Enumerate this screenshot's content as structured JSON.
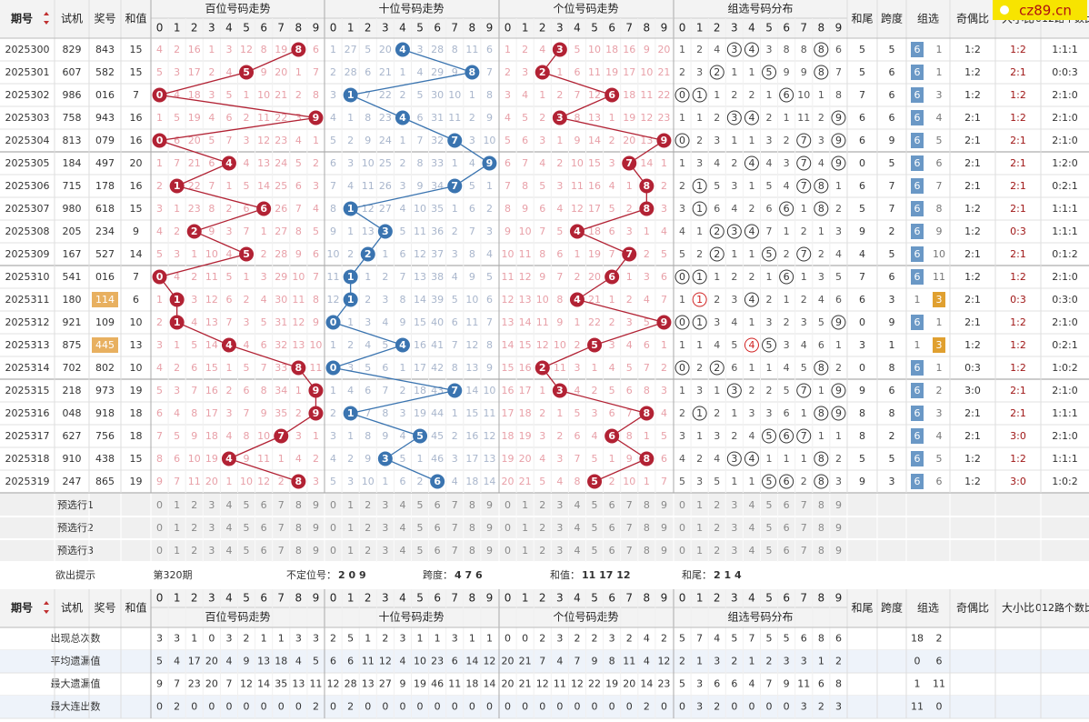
{
  "watermark": "cz89.cn",
  "header": {
    "issue": "期号",
    "trial": "试机",
    "prize": "奖号",
    "sum": "和值",
    "sections": [
      "百位号码走势",
      "十位号码走势",
      "个位号码走势",
      "组选号码分布"
    ],
    "sum_tail": "和尾",
    "span": "跨度",
    "group": "组选",
    "odd_even": "奇偶比",
    "big_small": "大小比",
    "route": "012路个数比"
  },
  "digits": [
    0,
    1,
    2,
    3,
    4,
    5,
    6,
    7,
    8,
    9
  ],
  "rows": [
    {
      "issue": "2025300",
      "trial": "829",
      "prize": "843",
      "sum": 15,
      "hundreds": [
        4,
        2,
        16,
        1,
        3,
        12,
        8,
        19,
        0,
        6
      ],
      "tens": [
        1,
        27,
        5,
        20,
        0,
        3,
        28,
        8,
        11,
        6
      ],
      "units": [
        1,
        2,
        4,
        0,
        5,
        10,
        18,
        16,
        9,
        20
      ],
      "group_dist": [
        1,
        2,
        4,
        0,
        0,
        3,
        8,
        8,
        0,
        6
      ],
      "sum_tail": 5,
      "span": 5,
      "group_type": 6,
      "group_miss": 1,
      "odd_even": "1:2",
      "big_small": "1:2",
      "route": "1:1:1"
    },
    {
      "issue": "2025301",
      "trial": "607",
      "prize": "582",
      "sum": 15,
      "hundreds": [
        5,
        3,
        17,
        2,
        4,
        0,
        9,
        20,
        1,
        7
      ],
      "tens": [
        2,
        28,
        6,
        21,
        1,
        4,
        29,
        9,
        0,
        7
      ],
      "units": [
        2,
        3,
        0,
        1,
        6,
        11,
        19,
        17,
        10,
        21
      ],
      "group_dist": [
        2,
        3,
        0,
        1,
        1,
        0,
        9,
        9,
        0,
        7
      ],
      "sum_tail": 5,
      "span": 6,
      "group_type": 6,
      "group_miss": 1,
      "odd_even": "1:2",
      "big_small": "2:1",
      "route": "0:0:3"
    },
    {
      "issue": "2025302",
      "trial": "986",
      "prize": "016",
      "sum": 7,
      "hundreds": [
        0,
        4,
        18,
        3,
        5,
        1,
        10,
        21,
        2,
        8
      ],
      "tens": [
        3,
        0,
        7,
        22,
        2,
        5,
        30,
        10,
        1,
        8
      ],
      "units": [
        3,
        4,
        1,
        2,
        7,
        12,
        0,
        18,
        11,
        22
      ],
      "group_dist": [
        0,
        0,
        1,
        2,
        2,
        1,
        0,
        10,
        1,
        8
      ],
      "sum_tail": 7,
      "span": 6,
      "group_type": 6,
      "group_miss": 3,
      "odd_even": "1:2",
      "big_small": "1:2",
      "route": "2:1:0"
    },
    {
      "issue": "2025303",
      "trial": "758",
      "prize": "943",
      "sum": 16,
      "hundreds": [
        1,
        5,
        19,
        4,
        6,
        2,
        11,
        22,
        3,
        0
      ],
      "tens": [
        4,
        1,
        8,
        23,
        0,
        6,
        31,
        11,
        2,
        9
      ],
      "units": [
        4,
        5,
        2,
        0,
        8,
        13,
        1,
        19,
        12,
        23
      ],
      "group_dist": [
        1,
        1,
        2,
        0,
        0,
        2,
        1,
        11,
        2,
        0
      ],
      "sum_tail": 6,
      "span": 6,
      "group_type": 6,
      "group_miss": 4,
      "odd_even": "2:1",
      "big_small": "1:2",
      "route": "2:1:0"
    },
    {
      "issue": "2025304",
      "trial": "813",
      "prize": "079",
      "sum": 16,
      "hundreds": [
        0,
        6,
        20,
        5,
        7,
        3,
        12,
        23,
        4,
        1
      ],
      "tens": [
        5,
        2,
        9,
        24,
        1,
        7,
        32,
        0,
        3,
        10
      ],
      "units": [
        5,
        6,
        3,
        1,
        9,
        14,
        2,
        20,
        13,
        0
      ],
      "group_dist": [
        0,
        2,
        3,
        1,
        1,
        3,
        2,
        0,
        3,
        0
      ],
      "sum_tail": 6,
      "span": 9,
      "group_type": 6,
      "group_miss": 5,
      "odd_even": "2:1",
      "big_small": "2:1",
      "route": "2:1:0"
    },
    {
      "issue": "2025305",
      "trial": "184",
      "prize": "497",
      "sum": 20,
      "hundreds": [
        1,
        7,
        21,
        6,
        0,
        4,
        13,
        24,
        5,
        2
      ],
      "tens": [
        6,
        3,
        10,
        25,
        2,
        8,
        33,
        1,
        4,
        0
      ],
      "units": [
        6,
        7,
        4,
        2,
        10,
        15,
        3,
        0,
        14,
        1
      ],
      "group_dist": [
        1,
        3,
        4,
        2,
        0,
        4,
        3,
        0,
        4,
        0
      ],
      "sum_tail": 0,
      "span": 5,
      "group_type": 6,
      "group_miss": 6,
      "odd_even": "2:1",
      "big_small": "2:1",
      "route": "1:2:0"
    },
    {
      "issue": "2025306",
      "trial": "715",
      "prize": "178",
      "sum": 16,
      "hundreds": [
        2,
        0,
        22,
        7,
        1,
        5,
        14,
        25,
        6,
        3
      ],
      "tens": [
        7,
        4,
        11,
        26,
        3,
        9,
        34,
        0,
        5,
        1
      ],
      "units": [
        7,
        8,
        5,
        3,
        11,
        16,
        4,
        1,
        0,
        2
      ],
      "group_dist": [
        2,
        0,
        5,
        3,
        1,
        5,
        4,
        0,
        0,
        1
      ],
      "sum_tail": 6,
      "span": 7,
      "group_type": 6,
      "group_miss": 7,
      "odd_even": "2:1",
      "big_small": "2:1",
      "route": "0:2:1"
    },
    {
      "issue": "2025307",
      "trial": "980",
      "prize": "618",
      "sum": 15,
      "hundreds": [
        3,
        1,
        23,
        8,
        2,
        6,
        0,
        26,
        7,
        4
      ],
      "tens": [
        8,
        0,
        12,
        27,
        4,
        10,
        35,
        1,
        6,
        2
      ],
      "units": [
        8,
        9,
        6,
        4,
        12,
        17,
        5,
        2,
        0,
        3
      ],
      "group_dist": [
        3,
        0,
        6,
        4,
        2,
        6,
        0,
        1,
        0,
        2
      ],
      "sum_tail": 5,
      "span": 7,
      "group_type": 6,
      "group_miss": 8,
      "odd_even": "1:2",
      "big_small": "2:1",
      "route": "1:1:1"
    },
    {
      "issue": "2025308",
      "trial": "205",
      "prize": "234",
      "sum": 9,
      "hundreds": [
        4,
        2,
        0,
        9,
        3,
        7,
        1,
        27,
        8,
        5
      ],
      "tens": [
        9,
        1,
        13,
        0,
        5,
        11,
        36,
        2,
        7,
        3
      ],
      "units": [
        9,
        10,
        7,
        5,
        0,
        18,
        6,
        3,
        1,
        4
      ],
      "group_dist": [
        4,
        1,
        0,
        0,
        0,
        7,
        1,
        2,
        1,
        3
      ],
      "sum_tail": 9,
      "span": 2,
      "group_type": 6,
      "group_miss": 9,
      "odd_even": "1:2",
      "big_small": "0:3",
      "route": "1:1:1"
    },
    {
      "issue": "2025309",
      "trial": "167",
      "prize": "527",
      "sum": 14,
      "hundreds": [
        5,
        3,
        1,
        10,
        4,
        0,
        2,
        28,
        9,
        6
      ],
      "tens": [
        10,
        2,
        0,
        1,
        6,
        12,
        37,
        3,
        8,
        4
      ],
      "units": [
        10,
        11,
        8,
        6,
        1,
        19,
        7,
        0,
        2,
        5
      ],
      "group_dist": [
        5,
        2,
        0,
        1,
        1,
        0,
        2,
        0,
        2,
        4
      ],
      "sum_tail": 4,
      "span": 5,
      "group_type": 6,
      "group_miss": 10,
      "odd_even": "2:1",
      "big_small": "2:1",
      "route": "0:1:2"
    },
    {
      "issue": "2025310",
      "trial": "541",
      "prize": "016",
      "sum": 7,
      "hundreds": [
        0,
        4,
        2,
        11,
        5,
        1,
        3,
        29,
        10,
        7
      ],
      "tens": [
        11,
        0,
        1,
        2,
        7,
        13,
        38,
        4,
        9,
        5
      ],
      "units": [
        11,
        12,
        9,
        7,
        2,
        20,
        0,
        1,
        3,
        6
      ],
      "group_dist": [
        0,
        0,
        1,
        2,
        2,
        1,
        0,
        1,
        3,
        5
      ],
      "sum_tail": 7,
      "span": 6,
      "group_type": 6,
      "group_miss": 11,
      "odd_even": "1:2",
      "big_small": "1:2",
      "route": "2:1:0"
    },
    {
      "issue": "2025311",
      "trial": "180",
      "prize": "114",
      "sum": 6,
      "hundreds": [
        1,
        0,
        3,
        12,
        6,
        2,
        4,
        30,
        11,
        8
      ],
      "tens": [
        12,
        0,
        2,
        3,
        8,
        14,
        39,
        5,
        10,
        6
      ],
      "units": [
        12,
        13,
        10,
        8,
        0,
        21,
        1,
        2,
        4,
        7
      ],
      "group_dist": [
        1,
        0,
        2,
        3,
        0,
        2,
        1,
        2,
        4,
        6
      ],
      "sum_tail": 6,
      "span": 3,
      "group_type": 3,
      "group_miss": 1,
      "odd_even": "2:1",
      "big_small": "0:3",
      "route": "0:3:0"
    },
    {
      "issue": "2025312",
      "trial": "921",
      "prize": "109",
      "sum": 10,
      "hundreds": [
        2,
        0,
        4,
        13,
        7,
        3,
        5,
        31,
        12,
        9
      ],
      "tens": [
        0,
        1,
        3,
        4,
        9,
        15,
        40,
        6,
        11,
        7
      ],
      "units": [
        13,
        14,
        11,
        9,
        1,
        22,
        2,
        3,
        5,
        0
      ],
      "group_dist": [
        0,
        0,
        3,
        4,
        1,
        3,
        2,
        3,
        5,
        0
      ],
      "sum_tail": 0,
      "span": 9,
      "group_type": 6,
      "group_miss": 1,
      "odd_even": "2:1",
      "big_small": "1:2",
      "route": "2:1:0"
    },
    {
      "issue": "2025313",
      "trial": "875",
      "prize": "445",
      "sum": 13,
      "hundreds": [
        3,
        1,
        5,
        14,
        0,
        4,
        6,
        32,
        13,
        10
      ],
      "tens": [
        1,
        2,
        4,
        5,
        0,
        16,
        41,
        7,
        12,
        8
      ],
      "units": [
        14,
        15,
        12,
        10,
        2,
        0,
        3,
        4,
        6,
        1
      ],
      "group_dist": [
        1,
        1,
        4,
        5,
        0,
        0,
        3,
        4,
        6,
        1
      ],
      "sum_tail": 3,
      "span": 1,
      "group_type": 3,
      "group_miss": 1,
      "odd_even": "1:2",
      "big_small": "1:2",
      "route": "0:2:1"
    },
    {
      "issue": "2025314",
      "trial": "702",
      "prize": "802",
      "sum": 10,
      "hundreds": [
        4,
        2,
        6,
        15,
        1,
        5,
        7,
        33,
        0,
        11
      ],
      "tens": [
        0,
        3,
        5,
        6,
        1,
        17,
        42,
        8,
        13,
        9
      ],
      "units": [
        15,
        16,
        0,
        11,
        3,
        1,
        4,
        5,
        7,
        2
      ],
      "group_dist": [
        0,
        2,
        0,
        6,
        1,
        1,
        4,
        5,
        0,
        2
      ],
      "sum_tail": 0,
      "span": 8,
      "group_type": 6,
      "group_miss": 1,
      "odd_even": "0:3",
      "big_small": "1:2",
      "route": "1:0:2"
    },
    {
      "issue": "2025315",
      "trial": "218",
      "prize": "973",
      "sum": 19,
      "hundreds": [
        5,
        3,
        7,
        16,
        2,
        6,
        8,
        34,
        1,
        0
      ],
      "tens": [
        1,
        4,
        6,
        7,
        2,
        18,
        43,
        0,
        14,
        10
      ],
      "units": [
        16,
        17,
        1,
        0,
        4,
        2,
        5,
        6,
        8,
        3
      ],
      "group_dist": [
        1,
        3,
        1,
        0,
        2,
        2,
        5,
        0,
        1,
        0
      ],
      "sum_tail": 9,
      "span": 6,
      "group_type": 6,
      "group_miss": 2,
      "odd_even": "3:0",
      "big_small": "2:1",
      "route": "2:1:0"
    },
    {
      "issue": "2025316",
      "trial": "048",
      "prize": "918",
      "sum": 18,
      "hundreds": [
        6,
        4,
        8,
        17,
        3,
        7,
        9,
        35,
        2,
        0
      ],
      "tens": [
        2,
        0,
        7,
        8,
        3,
        19,
        44,
        1,
        15,
        11
      ],
      "units": [
        17,
        18,
        2,
        1,
        5,
        3,
        6,
        7,
        0,
        4
      ],
      "group_dist": [
        2,
        0,
        2,
        1,
        3,
        3,
        6,
        1,
        0,
        0
      ],
      "sum_tail": 8,
      "span": 8,
      "group_type": 6,
      "group_miss": 3,
      "odd_even": "2:1",
      "big_small": "2:1",
      "route": "1:1:1"
    },
    {
      "issue": "2025317",
      "trial": "627",
      "prize": "756",
      "sum": 18,
      "hundreds": [
        7,
        5,
        9,
        18,
        4,
        8,
        10,
        0,
        3,
        1
      ],
      "tens": [
        3,
        1,
        8,
        9,
        4,
        0,
        45,
        2,
        16,
        12
      ],
      "units": [
        18,
        19,
        3,
        2,
        6,
        4,
        0,
        8,
        1,
        5
      ],
      "group_dist": [
        3,
        1,
        3,
        2,
        4,
        0,
        0,
        0,
        1,
        1
      ],
      "sum_tail": 8,
      "span": 2,
      "group_type": 6,
      "group_miss": 4,
      "odd_even": "2:1",
      "big_small": "3:0",
      "route": "2:1:0"
    },
    {
      "issue": "2025318",
      "trial": "910",
      "prize": "438",
      "sum": 15,
      "hundreds": [
        8,
        6,
        10,
        19,
        0,
        9,
        11,
        1,
        4,
        2
      ],
      "tens": [
        4,
        2,
        9,
        0,
        5,
        1,
        46,
        3,
        17,
        13
      ],
      "units": [
        19,
        20,
        4,
        3,
        7,
        5,
        1,
        9,
        0,
        6
      ],
      "group_dist": [
        4,
        2,
        4,
        0,
        0,
        1,
        1,
        1,
        0,
        2
      ],
      "sum_tail": 5,
      "span": 5,
      "group_type": 6,
      "group_miss": 5,
      "odd_even": "1:2",
      "big_small": "1:2",
      "route": "1:1:1"
    },
    {
      "issue": "2025319",
      "trial": "247",
      "prize": "865",
      "sum": 19,
      "hundreds": [
        9,
        7,
        11,
        20,
        1,
        10,
        12,
        2,
        0,
        3
      ],
      "tens": [
        5,
        3,
        10,
        1,
        6,
        2,
        0,
        4,
        18,
        14
      ],
      "units": [
        20,
        21,
        5,
        4,
        8,
        0,
        2,
        10,
        1,
        7
      ],
      "group_dist": [
        5,
        3,
        5,
        1,
        1,
        0,
        0,
        2,
        0,
        3
      ],
      "sum_tail": 9,
      "span": 3,
      "group_type": 6,
      "group_miss": 6,
      "odd_even": "1:2",
      "big_small": "3:0",
      "route": "1:0:2"
    }
  ],
  "preselect": [
    "预选行1",
    "预选行2",
    "预选行3"
  ],
  "hint": {
    "label": "欲出提示",
    "issue": "第320期",
    "items": [
      {
        "label": "不定位号：",
        "value": "2 0 9"
      },
      {
        "label": "跨度：",
        "value": "4 7 6"
      },
      {
        "label": "和值：",
        "value": "11 17 12"
      },
      {
        "label": "和尾：",
        "value": "2 1 4"
      }
    ]
  },
  "stats": [
    {
      "label": "出现总次数",
      "hundreds": [
        3,
        3,
        1,
        0,
        3,
        2,
        1,
        1,
        3,
        3
      ],
      "tens": [
        2,
        5,
        1,
        2,
        3,
        1,
        1,
        3,
        1,
        1
      ],
      "units": [
        0,
        0,
        2,
        3,
        2,
        2,
        3,
        2,
        4,
        2
      ],
      "group_dist": [
        5,
        7,
        4,
        5,
        7,
        5,
        5,
        6,
        8,
        6
      ],
      "group": [
        18,
        2
      ]
    },
    {
      "label": "平均遗漏值",
      "hundreds": [
        5,
        4,
        17,
        20,
        4,
        9,
        13,
        18,
        4,
        5
      ],
      "tens": [
        6,
        6,
        11,
        12,
        4,
        10,
        23,
        6,
        14,
        12
      ],
      "units": [
        20,
        21,
        7,
        4,
        7,
        9,
        8,
        11,
        4,
        12
      ],
      "group_dist": [
        2,
        1,
        3,
        2,
        1,
        2,
        3,
        3,
        1,
        2
      ],
      "group": [
        0,
        6
      ]
    },
    {
      "label": "最大遗漏值",
      "hundreds": [
        9,
        7,
        23,
        20,
        7,
        12,
        14,
        35,
        13,
        11
      ],
      "tens": [
        12,
        28,
        13,
        27,
        9,
        19,
        46,
        11,
        18,
        14
      ],
      "units": [
        20,
        21,
        12,
        11,
        12,
        22,
        19,
        20,
        14,
        23
      ],
      "group_dist": [
        5,
        3,
        6,
        6,
        4,
        7,
        9,
        11,
        6,
        8
      ],
      "group": [
        1,
        11
      ]
    },
    {
      "label": "最大连出数",
      "hundreds": [
        0,
        2,
        0,
        0,
        0,
        0,
        0,
        0,
        0,
        2
      ],
      "tens": [
        0,
        2,
        0,
        0,
        0,
        0,
        0,
        0,
        0,
        0
      ],
      "units": [
        0,
        0,
        0,
        0,
        0,
        0,
        0,
        0,
        2,
        0
      ],
      "group_dist": [
        0,
        3,
        2,
        0,
        0,
        0,
        0,
        3,
        2,
        3
      ],
      "group": [
        11,
        0
      ]
    }
  ]
}
